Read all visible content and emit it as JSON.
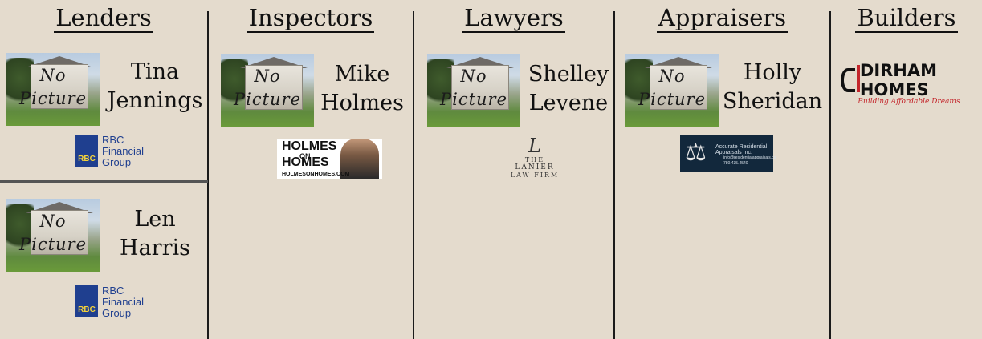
{
  "columns": [
    {
      "heading": "Lenders",
      "cards": [
        {
          "photo_text": [
            "No",
            "Picture"
          ],
          "name_line1": "Tina",
          "name_line2": "Jennings",
          "logo": {
            "type": "rbc",
            "shield_text": "RBC",
            "text_lines": [
              "RBC",
              "Financial",
              "Group"
            ]
          }
        },
        {
          "photo_text": [
            "No",
            "Picture"
          ],
          "name_line1": "Len",
          "name_line2": "Harris",
          "logo": {
            "type": "rbc",
            "shield_text": "RBC",
            "text_lines": [
              "RBC",
              "Financial",
              "Group"
            ]
          }
        }
      ]
    },
    {
      "heading": "Inspectors",
      "cards": [
        {
          "photo_text": [
            "No",
            "Picture"
          ],
          "name_line1": "Mike",
          "name_line2": "Holmes",
          "logo": {
            "type": "holmes",
            "line1": "HOLMES",
            "line2": "ON",
            "line3": "HOMES",
            "url": "HOLMESONHOMES.COM"
          }
        }
      ]
    },
    {
      "heading": "Lawyers",
      "cards": [
        {
          "photo_text": [
            "No",
            "Picture"
          ],
          "name_line1": "Shelley",
          "name_line2": "Levene",
          "logo": {
            "type": "lanier",
            "mark": "L",
            "top": "THE",
            "name": "LANIER",
            "sub": "LAW FIRM"
          }
        }
      ]
    },
    {
      "heading": "Appraisers",
      "cards": [
        {
          "photo_text": [
            "No",
            "Picture"
          ],
          "name_line1": "Holly",
          "name_line2": "Sheridan",
          "logo": {
            "type": "accurate",
            "title": "Accurate Residential Appraisals Inc.",
            "email": "info@residentialappraisals.ca",
            "phone": "780.435.4540"
          }
        }
      ]
    },
    {
      "heading": "Builders",
      "cards": [],
      "logo": {
        "type": "dirham",
        "word": "DIRHAM HOMES",
        "tag": "Building Affordable Dreams"
      }
    }
  ],
  "colors": {
    "background": "#e4dbcd",
    "rbc_blue": "#1f3f8f",
    "rbc_yellow": "#f3d23b",
    "dirham_red": "#c4262c",
    "appraisal_navy": "#12283c"
  }
}
